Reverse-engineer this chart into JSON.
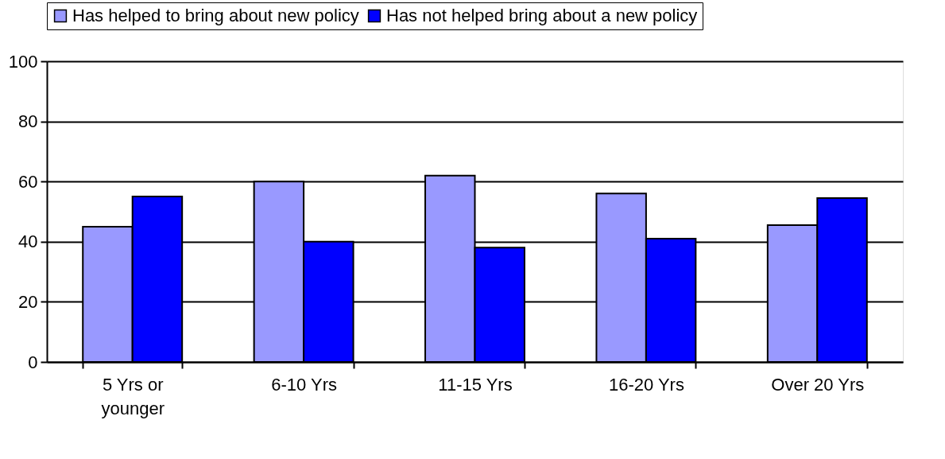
{
  "chart_data": {
    "type": "bar",
    "categories": [
      "5 Yrs or younger",
      "6-10 Yrs",
      "11-15 Yrs",
      "16-20 Yrs",
      "Over 20 Yrs"
    ],
    "series": [
      {
        "name": "Has helped to bring about new policy",
        "color": "#9999ff",
        "values": [
          45,
          60,
          62,
          56,
          45.5
        ]
      },
      {
        "name": "Has not helped bring about a new policy",
        "color": "#0000ff",
        "values": [
          55,
          40,
          38,
          41,
          54.5
        ]
      }
    ],
    "ylim": [
      0,
      100
    ],
    "yticks": [
      0,
      20,
      40,
      60,
      80,
      100
    ],
    "grid": "y",
    "legend": "top"
  }
}
